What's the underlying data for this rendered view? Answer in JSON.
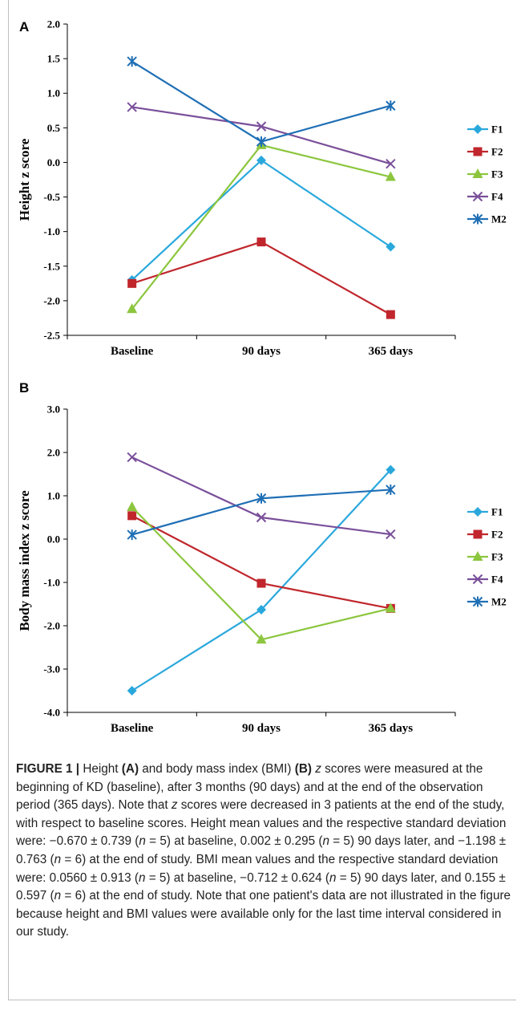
{
  "figure": {
    "caption": {
      "label": "FIGURE 1 |",
      "t1": " Height ",
      "a": "(A)",
      "t2": " and body mass index (BMI) ",
      "b": "(B)",
      "z": "z",
      "t3": " scores were measured at the beginning of KD (baseline), after 3 months (90 days) and at the end of the observation period (365 days). Note that ",
      "z2": "z",
      "t4": " scores were decreased in 3 patients at the end of the study, with respect to baseline scores. Height mean values and the respective standard deviation were: −0.670 ± 0.739 (",
      "n1": "n",
      "t5": " = 5) at baseline, 0.002 ± 0.295 (",
      "n2": "n",
      "t6": " = 5) 90 days later, and −1.198 ± 0.763 (",
      "n3": "n",
      "t7": " = 6) at the end of study. BMI mean values and the respective standard deviation were: 0.0560 ± 0.913 (",
      "n4": "n",
      "t8": " = 5) at baseline, −0.712 ± 0.624 (",
      "n5": "n",
      "t9": " = 5) 90 days later, and 0.155 ± 0.597 (",
      "n6": "n",
      "t10": " = 6) at the end of study. Note that one patient's data are not illustrated in the figure because height and BMI values were available only for the last time interval considered in our study."
    }
  },
  "chart_data": [
    {
      "panel": "A",
      "type": "line",
      "title": "",
      "xlabel": "",
      "ylabel": "Height z score",
      "categories": [
        "Baseline",
        "90 days",
        "365 days"
      ],
      "ylim": [
        -2.5,
        2.0
      ],
      "yticks": [
        2.0,
        1.5,
        1.0,
        0.5,
        0.0,
        -0.5,
        -1.0,
        -1.5,
        -2.0,
        -2.5
      ],
      "ytick_labels": [
        "2.0",
        "1.5",
        "1.0",
        "0.5",
        "0.0",
        "-0.5",
        "-1.0",
        "-1.5",
        "-2.0",
        "-2.5"
      ],
      "grid": false,
      "legend": "right",
      "series": [
        {
          "name": "F1",
          "color": "#2aa8dc",
          "marker": "diamond",
          "values": [
            -1.7,
            0.03,
            -1.22
          ]
        },
        {
          "name": "F2",
          "color": "#c0262c",
          "marker": "square",
          "values": [
            -1.75,
            -1.15,
            -2.2
          ]
        },
        {
          "name": "F3",
          "color": "#8cc63e",
          "marker": "triangle",
          "values": [
            -2.12,
            0.25,
            -0.21
          ]
        },
        {
          "name": "F4",
          "color": "#7a4f9a",
          "marker": "x",
          "values": [
            0.8,
            0.52,
            -0.02
          ]
        },
        {
          "name": "M2",
          "color": "#1f6fb5",
          "marker": "star",
          "values": [
            1.46,
            0.3,
            0.82
          ]
        }
      ]
    },
    {
      "panel": "B",
      "type": "line",
      "title": "",
      "xlabel": "",
      "ylabel": "Body mass index z score",
      "categories": [
        "Baseline",
        "90 days",
        "365 days"
      ],
      "ylim": [
        -4.0,
        3.0
      ],
      "yticks": [
        3.0,
        2.0,
        1.0,
        0.0,
        -1.0,
        -2.0,
        -3.0,
        -4.0
      ],
      "ytick_labels": [
        "3.0",
        "2.0",
        "1.0",
        "0.0",
        "-1.0",
        "-2.0",
        "-3.0",
        "-4.0"
      ],
      "grid": false,
      "legend": "right",
      "series": [
        {
          "name": "F1",
          "color": "#2aa8dc",
          "marker": "diamond",
          "values": [
            -3.5,
            -1.63,
            1.6
          ]
        },
        {
          "name": "F2",
          "color": "#c0262c",
          "marker": "square",
          "values": [
            0.54,
            -1.02,
            -1.6
          ]
        },
        {
          "name": "F3",
          "color": "#8cc63e",
          "marker": "triangle",
          "values": [
            0.74,
            -2.32,
            -1.6
          ]
        },
        {
          "name": "F4",
          "color": "#7a4f9a",
          "marker": "x",
          "values": [
            1.89,
            0.5,
            0.11
          ]
        },
        {
          "name": "M2",
          "color": "#1f6fb5",
          "marker": "star",
          "values": [
            0.1,
            0.94,
            1.14
          ]
        }
      ]
    }
  ]
}
